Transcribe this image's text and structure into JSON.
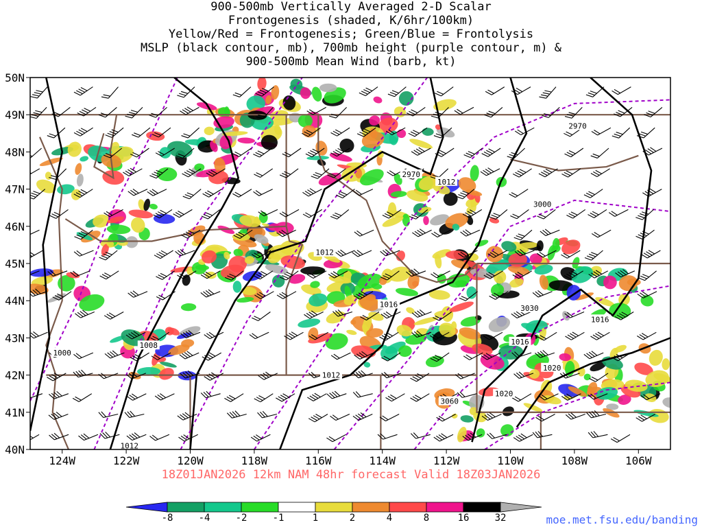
{
  "title_lines": [
    "900-500mb Vertically Averaged 2-D Scalar",
    "Frontogenesis (shaded, K/6hr/100km)",
    "Yellow/Red = Frontogenesis;  Green/Blue = Frontolysis",
    "MSLP (black contour, mb), 700mb height (purple contour, m) &",
    "900-500mb Mean Wind (barb, kt)"
  ],
  "footer": "18Z01JAN2026 12km NAM 48hr forecast Valid 18Z03JAN2026",
  "credit": "moe.met.fsu.edu/banding",
  "map": {
    "lon_range": [
      -125,
      -105
    ],
    "lat_range": [
      40,
      50
    ],
    "lat_labels": [
      "50N",
      "49N",
      "48N",
      "47N",
      "46N",
      "45N",
      "44N",
      "43N",
      "42N",
      "41N",
      "40N"
    ],
    "lon_labels": [
      "124W",
      "122W",
      "120W",
      "118W",
      "116W",
      "114W",
      "112W",
      "110W",
      "108W",
      "106W"
    ],
    "lon_label_values": [
      -124,
      -122,
      -120,
      -118,
      -116,
      -114,
      -112,
      -110,
      -108,
      -106
    ],
    "mslp_labels": [
      {
        "text": "1012",
        "lon": -115.8,
        "lat": 45.3
      },
      {
        "text": "1012",
        "lon": -112.0,
        "lat": 47.2
      },
      {
        "text": "1016",
        "lon": -113.8,
        "lat": 43.9
      },
      {
        "text": "1016",
        "lon": -109.7,
        "lat": 42.9
      },
      {
        "text": "1016",
        "lon": -107.2,
        "lat": 43.5
      },
      {
        "text": "1020",
        "lon": -108.7,
        "lat": 42.2
      },
      {
        "text": "1020",
        "lon": -110.2,
        "lat": 41.5
      },
      {
        "text": "1000",
        "lon": -124.0,
        "lat": 42.6
      },
      {
        "text": "1008",
        "lon": -121.3,
        "lat": 42.8
      },
      {
        "text": "1012",
        "lon": -121.9,
        "lat": 40.1
      },
      {
        "text": "1012",
        "lon": -115.6,
        "lat": 42.0
      }
    ],
    "height_labels": [
      {
        "text": "2970",
        "lon": -107.9,
        "lat": 48.7
      },
      {
        "text": "2970",
        "lon": -113.1,
        "lat": 47.4
      },
      {
        "text": "3000",
        "lon": -109.0,
        "lat": 46.6
      },
      {
        "text": "3030",
        "lon": -109.4,
        "lat": 43.8
      },
      {
        "text": "3060",
        "lon": -111.9,
        "lat": 41.3
      }
    ],
    "colors": {
      "mslp": "#000000",
      "height": "#a000c8",
      "borders": "#7a5a4a",
      "frontogenesis": [
        "#e8dc3c",
        "#ee8a30",
        "#ff4a4a",
        "#f0148c",
        "#000000",
        "#b0b0b0"
      ],
      "frontolysis": [
        "#28dc28",
        "#14c88c",
        "#14a064",
        "#2828f0"
      ]
    }
  },
  "colorbar": {
    "labels": [
      "-8",
      "-4",
      "-2",
      "-1",
      "1",
      "2",
      "4",
      "8",
      "16",
      "32"
    ],
    "colors": [
      "#2828f0",
      "#14a064",
      "#14c88c",
      "#28dc28",
      "#ffffff",
      "#e8dc3c",
      "#ee8a30",
      "#ff4a4a",
      "#f0148c",
      "#000000",
      "#b0b0b0"
    ]
  }
}
